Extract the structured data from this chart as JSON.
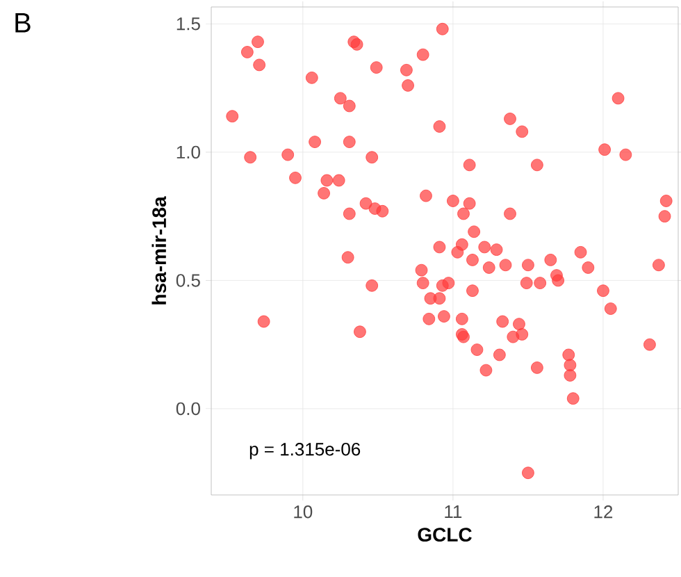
{
  "chart_data": {
    "type": "scatter",
    "title": "B",
    "xlabel": "GCLC",
    "ylabel": "hsa-mir-18a",
    "annotations": [
      "p = 1.315e-06"
    ],
    "xlim": [
      9.39,
      12.5
    ],
    "ylim": [
      -0.336,
      1.566
    ],
    "xticks": [
      10,
      11,
      12
    ],
    "yticks": [
      {
        "value": 0,
        "label": "0.0"
      },
      {
        "value": 0.5,
        "label": "0.5"
      },
      {
        "value": 1,
        "label": "1.0"
      },
      {
        "value": 1.5,
        "label": "1.5"
      }
    ],
    "grid": true,
    "marker": "circle",
    "color": "#ff3b3b",
    "x": [
      9.53,
      9.63,
      9.7,
      9.71,
      9.65,
      9.74,
      9.9,
      9.95,
      10.06,
      10.08,
      10.14,
      10.16,
      10.24,
      10.25,
      10.31,
      10.31,
      10.34,
      10.36,
      10.3,
      10.46,
      10.49,
      10.31,
      10.42,
      10.48,
      10.53,
      10.46,
      10.38,
      10.69,
      10.7,
      10.8,
      10.93,
      10.91,
      11.11,
      10.82,
      11.0,
      11.11,
      11.07,
      11.14,
      11.38,
      11.46,
      11.56,
      11.38,
      12.1,
      12.01,
      12.15,
      12.42,
      12.41,
      10.91,
      11.06,
      11.03,
      11.21,
      11.29,
      11.13,
      11.24,
      11.35,
      11.5,
      11.65,
      11.85,
      11.9,
      11.69,
      11.7,
      11.58,
      11.49,
      12.37,
      12.0,
      12.05,
      12.31,
      10.79,
      10.8,
      10.97,
      10.93,
      10.85,
      10.91,
      11.13,
      10.84,
      10.94,
      11.06,
      11.06,
      11.07,
      11.33,
      11.44,
      11.46,
      11.4,
      11.16,
      11.31,
      11.22,
      11.56,
      11.77,
      11.78,
      11.78,
      11.8,
      11.5
    ],
    "values": [
      1.14,
      1.39,
      1.43,
      1.34,
      0.98,
      0.34,
      0.99,
      0.9,
      1.29,
      1.04,
      0.84,
      0.89,
      0.89,
      1.21,
      1.04,
      1.18,
      1.43,
      1.42,
      0.59,
      0.98,
      1.33,
      0.76,
      0.8,
      0.78,
      0.77,
      0.48,
      0.3,
      1.32,
      1.26,
      1.38,
      1.48,
      1.1,
      0.95,
      0.83,
      0.81,
      0.8,
      0.76,
      0.69,
      1.13,
      1.08,
      0.95,
      0.76,
      1.21,
      1.01,
      0.99,
      0.81,
      0.75,
      0.63,
      0.64,
      0.61,
      0.63,
      0.62,
      0.58,
      0.55,
      0.56,
      0.56,
      0.58,
      0.61,
      0.55,
      0.52,
      0.5,
      0.49,
      0.49,
      0.56,
      0.46,
      0.39,
      0.25,
      0.54,
      0.49,
      0.49,
      0.48,
      0.43,
      0.43,
      0.46,
      0.35,
      0.36,
      0.35,
      0.29,
      0.28,
      0.34,
      0.33,
      0.29,
      0.28,
      0.23,
      0.21,
      0.15,
      0.16,
      0.21,
      0.17,
      0.13,
      0.04,
      -0.25
    ]
  }
}
